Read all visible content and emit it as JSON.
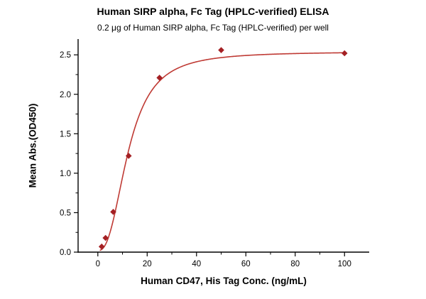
{
  "chart_data": {
    "type": "scatter",
    "title": "Human SIRP alpha, Fc Tag (HPLC-verified) ELISA",
    "subtitle": "0.2 μg of Human SIRP alpha, Fc Tag (HPLC-verified) per well",
    "xlabel": "Human CD47, His Tag Conc. (ng/mL)",
    "ylabel": "Mean Abs.(OD450)",
    "xlim": [
      -8,
      110
    ],
    "ylim": [
      0,
      2.7
    ],
    "x_ticks": [
      0,
      20,
      40,
      60,
      80,
      100
    ],
    "x_minor_ticks": [
      10,
      30,
      50,
      70,
      90
    ],
    "y_ticks": [
      0.0,
      0.5,
      1.0,
      1.5,
      2.0,
      2.5
    ],
    "y_minor_ticks": [
      0.25,
      0.75,
      1.25,
      1.75,
      2.25
    ],
    "points": [
      {
        "x": 1.56,
        "y": 0.07
      },
      {
        "x": 3.13,
        "y": 0.18
      },
      {
        "x": 6.25,
        "y": 0.51
      },
      {
        "x": 12.5,
        "y": 1.22
      },
      {
        "x": 25,
        "y": 2.21
      },
      {
        "x": 50,
        "y": 2.56
      },
      {
        "x": 100,
        "y": 2.52
      }
    ],
    "fit_curve": {
      "model": "4PL",
      "bottom": 0.02,
      "top": 2.54,
      "ec50": 12.4,
      "hill": 2.5,
      "x_start": 1.0,
      "x_end": 100
    },
    "marker_color": "#a42024",
    "line_color": "#bf3a34",
    "axis_color": "#000000",
    "grid": false,
    "legend": "none"
  }
}
